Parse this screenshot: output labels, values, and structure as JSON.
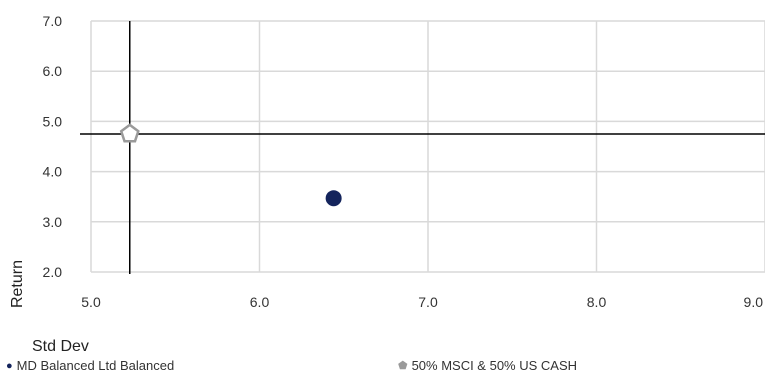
{
  "chart_data": {
    "type": "scatter",
    "xlabel": "Std Dev",
    "ylabel": "Return",
    "xlim": [
      5.0,
      9.0
    ],
    "ylim": [
      2.0,
      7.0
    ],
    "x_ticks": [
      "5.0",
      "6.0",
      "7.0",
      "8.0",
      "9.0"
    ],
    "y_ticks": [
      "2.0",
      "3.0",
      "4.0",
      "5.0",
      "6.0",
      "7.0"
    ],
    "grid": true,
    "series": [
      {
        "name": "MD Balanced Ltd Balanced",
        "x": 6.44,
        "y": 3.47,
        "color": "#14245c",
        "marker": "circle"
      },
      {
        "name": "50% MSCI & 50% US CASH",
        "x": 5.23,
        "y": 4.75,
        "color": "#9a9a9a",
        "marker": "pentagon"
      }
    ],
    "crosshair": {
      "x": 5.23,
      "y": 4.75,
      "color": "#000000"
    },
    "legend_position": "bottom"
  }
}
